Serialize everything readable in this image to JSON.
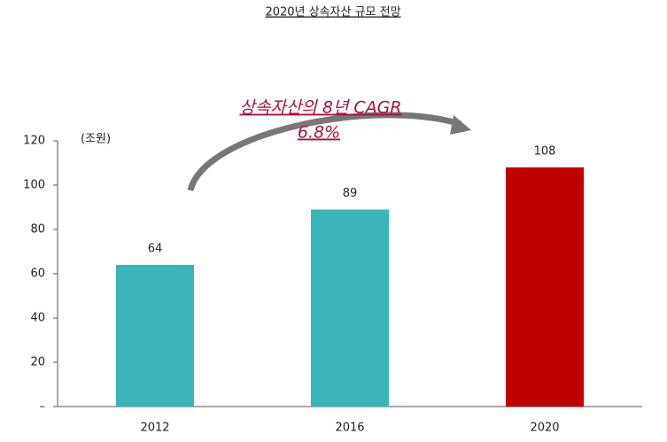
{
  "chart_data": {
    "type": "bar",
    "title": "2020년 상속자산 규모 전망",
    "unit_label": "(조원)",
    "annotation": [
      "상속자산의 8년 CAGR",
      "6.8%"
    ],
    "categories": [
      "2012",
      "2016",
      "2020"
    ],
    "values": [
      64,
      89,
      108
    ],
    "colors": [
      "#3bb5b9",
      "#3bb5b9",
      "#c00000"
    ],
    "ylim": [
      0,
      120
    ],
    "yticks": [
      {
        "value": 0,
        "label": "–"
      },
      20,
      40,
      60,
      80,
      100,
      120
    ],
    "grid": false
  }
}
